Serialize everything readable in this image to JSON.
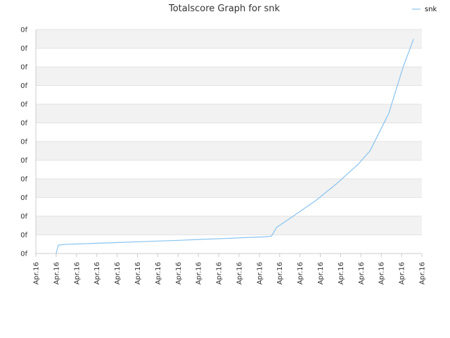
{
  "chart_data": {
    "type": "line",
    "title": "Totalscore Graph for snk",
    "legend": {
      "position": "top-right",
      "entries": [
        "snk"
      ]
    },
    "grid": true,
    "series_color": "#88c4f0",
    "y_tick_labels": [
      "0f",
      "0f",
      "0f",
      "0f",
      "0f",
      "0f",
      "0f",
      "0f",
      "0f",
      "0f",
      "0f",
      "0f",
      "0f"
    ],
    "x_tick_labels": [
      "Apr.16",
      "Apr.16",
      "Apr.16",
      "Apr.16",
      "Apr.16",
      "Apr.16",
      "Apr.16",
      "Apr.16",
      "Apr.16",
      "Apr.16",
      "Apr.16",
      "Apr.16",
      "Apr.16",
      "Apr.16",
      "Apr.16",
      "Apr.16",
      "Apr.16",
      "Apr.16",
      "Apr.16",
      "Apr.16"
    ],
    "ylim": [
      0,
      12
    ],
    "xlim": [
      0,
      18.6
    ],
    "series": [
      {
        "name": "snk",
        "x": [
          0.98,
          1.08,
          1.5,
          2,
          3,
          4,
          5,
          6,
          7,
          8,
          9,
          10,
          11,
          11.35,
          11.6,
          12.4,
          13.5,
          14.5,
          15.5,
          16.1,
          17,
          17.7,
          18.2
        ],
        "y": [
          0,
          0.45,
          0.5,
          0.51,
          0.55,
          0.59,
          0.63,
          0.67,
          0.71,
          0.76,
          0.8,
          0.85,
          0.89,
          0.93,
          1.4,
          2.0,
          2.85,
          3.75,
          4.75,
          5.5,
          7.5,
          10.0,
          11.5
        ]
      }
    ]
  }
}
